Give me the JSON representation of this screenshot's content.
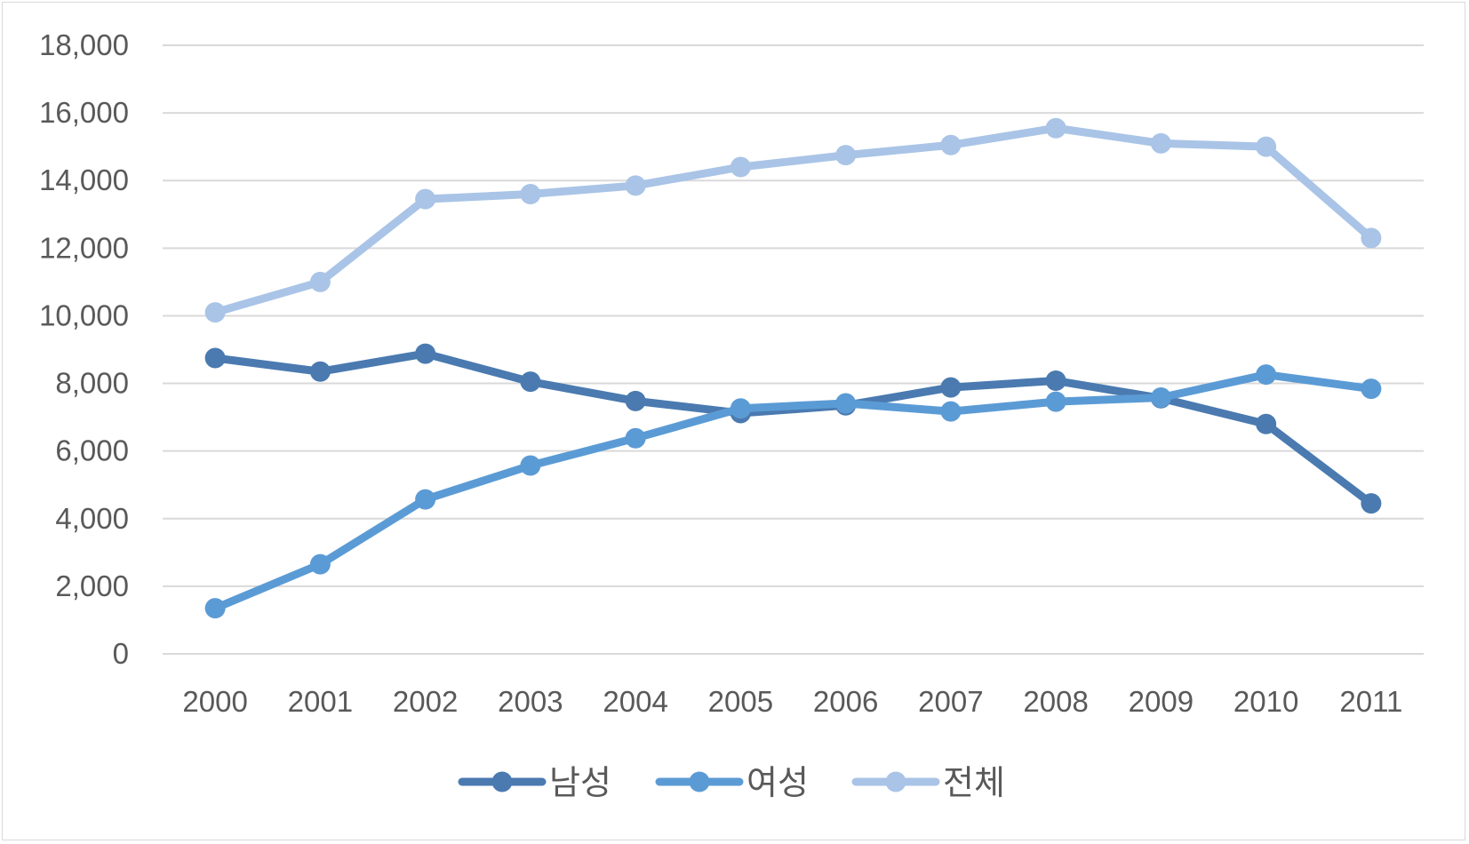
{
  "chart_data": {
    "type": "line",
    "title": "",
    "xlabel": "",
    "ylabel": "",
    "categories": [
      "2000",
      "2001",
      "2002",
      "2003",
      "2004",
      "2005",
      "2006",
      "2007",
      "2008",
      "2009",
      "2010",
      "2011"
    ],
    "ylim": [
      0,
      18000
    ],
    "yticks": [
      0,
      2000,
      4000,
      6000,
      8000,
      10000,
      12000,
      14000,
      16000,
      18000
    ],
    "ytick_labels": [
      "0",
      "2,000",
      "4,000",
      "6,000",
      "8,000",
      "10,000",
      "12,000",
      "14,000",
      "16,000",
      "18,000"
    ],
    "grid": true,
    "legend_position": "bottom",
    "series": [
      {
        "name": "남성",
        "color": "#4a7ab0",
        "values": [
          8750,
          8350,
          8880,
          8050,
          7480,
          7120,
          7350,
          7880,
          8080,
          7560,
          6800,
          4450
        ]
      },
      {
        "name": "여성",
        "color": "#5b9bd5",
        "values": [
          1350,
          2650,
          4570,
          5570,
          6380,
          7260,
          7410,
          7170,
          7460,
          7580,
          8260,
          7840
        ]
      },
      {
        "name": "전체",
        "color": "#a9c4e6",
        "values": [
          10100,
          11000,
          13450,
          13600,
          13850,
          14400,
          14750,
          15050,
          15550,
          15100,
          15000,
          12300
        ]
      }
    ]
  }
}
